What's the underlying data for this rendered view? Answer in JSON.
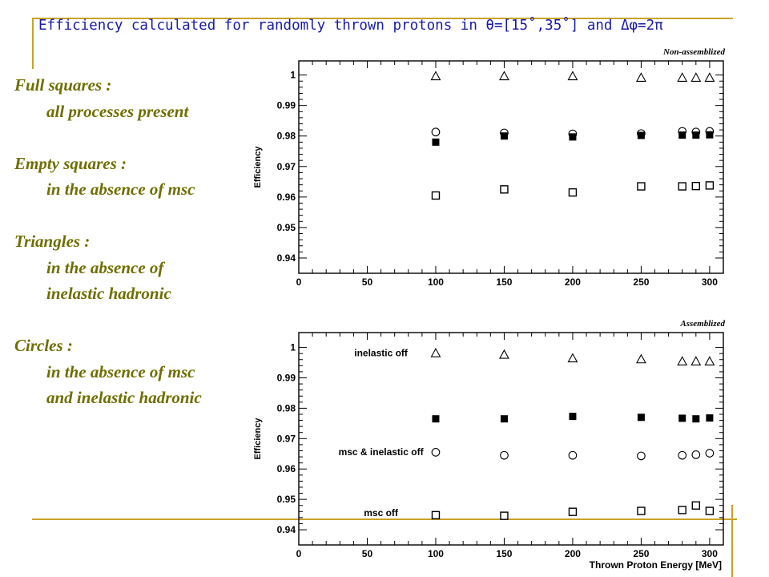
{
  "slide": {
    "title": "Efficiency calculated for randomly thrown protons in θ=[15˚,35˚] and Δφ=2π"
  },
  "notes": [
    {
      "head": "Full squares :",
      "lines": [
        "all processes present"
      ]
    },
    {
      "head": "Empty squares :",
      "lines": [
        "in the absence of msc"
      ]
    },
    {
      "head": "Triangles :",
      "lines": [
        "in the absence of",
        "inelastic hadronic"
      ]
    },
    {
      "head": "Circles :",
      "lines": [
        "in the absence of msc",
        "and inelastic hadronic"
      ]
    }
  ],
  "colors": {
    "accent_rule": "#c9a227",
    "title_text": "#1a1aa6",
    "notes_text": "#6e6e00"
  },
  "chart_data": [
    {
      "type": "scatter",
      "title": "Non-assemblized",
      "xlabel": "",
      "ylabel": "Efficiency",
      "xlim": [
        0,
        310
      ],
      "ylim": [
        0.935,
        1.002
      ],
      "xticks": [
        0,
        50,
        100,
        150,
        200,
        250,
        300
      ],
      "yticks": [
        0.94,
        0.95,
        0.96,
        0.97,
        0.98,
        0.99,
        1
      ],
      "x": [
        100,
        150,
        200,
        250,
        280,
        290,
        300
      ],
      "series": [
        {
          "marker": "triangle",
          "values": [
            0.9995,
            0.9995,
            0.9995,
            0.999,
            0.999,
            0.999,
            0.999
          ]
        },
        {
          "marker": "circle",
          "values": [
            0.9813,
            0.981,
            0.9807,
            0.9808,
            0.9815,
            0.9813,
            0.9815
          ]
        },
        {
          "marker": "filled-square",
          "values": [
            0.978,
            0.98,
            0.9797,
            0.9802,
            0.9803,
            0.9803,
            0.9804
          ]
        },
        {
          "marker": "open-square",
          "values": [
            0.9605,
            0.9625,
            0.9615,
            0.9635,
            0.9635,
            0.9636,
            0.9638
          ]
        }
      ],
      "annotations": []
    },
    {
      "type": "scatter",
      "title": "Assemblized",
      "xlabel": "Thrown Proton Energy [MeV]",
      "ylabel": "Efficiency",
      "xlim": [
        0,
        310
      ],
      "ylim": [
        0.935,
        1.002
      ],
      "xticks": [
        0,
        50,
        100,
        150,
        200,
        250,
        300
      ],
      "yticks": [
        0.94,
        0.95,
        0.96,
        0.97,
        0.98,
        0.99,
        1
      ],
      "x": [
        100,
        150,
        200,
        250,
        280,
        290,
        300
      ],
      "series": [
        {
          "marker": "triangle",
          "values": [
            0.998,
            0.9975,
            0.9963,
            0.996,
            0.9953,
            0.9953,
            0.9953
          ]
        },
        {
          "marker": "filled-square",
          "values": [
            0.9765,
            0.9765,
            0.9773,
            0.977,
            0.9767,
            0.9765,
            0.9768
          ]
        },
        {
          "marker": "circle",
          "values": [
            0.9655,
            0.9645,
            0.9645,
            0.9643,
            0.9645,
            0.9647,
            0.9652
          ]
        },
        {
          "marker": "open-square",
          "values": [
            0.9448,
            0.9446,
            0.9459,
            0.9462,
            0.9465,
            0.948,
            0.9462
          ]
        }
      ],
      "annotations": [
        {
          "text": "inelastic off",
          "x": 60,
          "y": 0.9982
        },
        {
          "text": "msc & inelastic off",
          "x": 60,
          "y": 0.9656
        },
        {
          "text": "msc off",
          "x": 60,
          "y": 0.9455
        }
      ]
    }
  ]
}
